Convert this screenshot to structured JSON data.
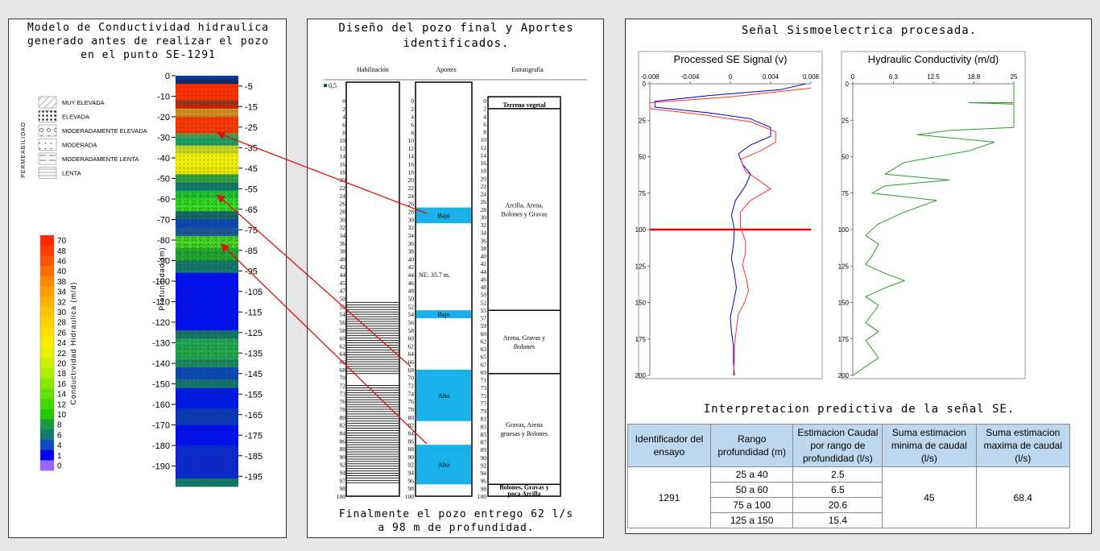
{
  "left_panel": {
    "title_lines": [
      "Modelo de Conductividad hidraulica",
      "generado antes de realizar el pozo",
      "en el punto SE-1291"
    ],
    "permeability_axis_label": "Permeabilidad",
    "permeability_legend": [
      "MUY ELEVADA",
      "ELEVADA",
      "MODERADAMENTE ELEVADA",
      "MODERADA",
      "MODERADAMENTE LENTA",
      "LENTA"
    ],
    "color_scale_label": "Conductividad Hidraulica (m/d)",
    "color_scale_values": [
      "70",
      "48",
      "46",
      "40",
      "38",
      "34",
      "32",
      "30",
      "28",
      "26",
      "24",
      "22",
      "20",
      "18",
      "16",
      "14",
      "12",
      "10",
      "8",
      "6",
      "4",
      "1",
      "0"
    ],
    "color_scale_colors": [
      "#ff2a00",
      "#ff3c00",
      "#ff5500",
      "#ff6f00",
      "#ff8a00",
      "#ffa000",
      "#ffb300",
      "#ffc400",
      "#ffd200",
      "#ffe000",
      "#f8ec00",
      "#e8f000",
      "#ccf000",
      "#aaee00",
      "#88e800",
      "#66e000",
      "#44d800",
      "#22c800",
      "#1a9a40",
      "#127a6a",
      "#0a4aba",
      "#0000ee",
      "#9966ff"
    ],
    "depth_axis_label": "Profundidad (m)",
    "depth_left_ticks": [
      "0",
      "-10",
      "-20",
      "-30",
      "-40",
      "-50",
      "-60",
      "-70",
      "-80",
      "-90",
      "-100",
      "-110",
      "-120",
      "-130",
      "-140",
      "-150",
      "-160",
      "-170",
      "-180",
      "-190"
    ],
    "depth_right_ticks": [
      "-5",
      "-15",
      "-25",
      "-35",
      "-45",
      "-55",
      "-65",
      "-75",
      "-85",
      "-95",
      "-105",
      "-115",
      "-125",
      "-135",
      "-145",
      "-155",
      "-165",
      "-175",
      "-185",
      "-195"
    ]
  },
  "middle_panel": {
    "title_lines": [
      "Diseño del pozo final y Aportes",
      "identificados."
    ],
    "column_headers": [
      "Habilitación",
      "Aportes",
      "Estratigrafía"
    ],
    "top_marker": "0,5",
    "depth_ticks_a": [
      "0",
      "2",
      "4",
      "6",
      "8",
      "10",
      "12",
      "14",
      "16",
      "18",
      "20",
      "22",
      "24",
      "26",
      "28",
      "30",
      "32",
      "34",
      "36",
      "38",
      "40",
      "42",
      "44",
      "45",
      "47",
      "50",
      "52",
      "54",
      "56",
      "58",
      "60",
      "62",
      "64",
      "66",
      "68",
      "70",
      "72",
      "73",
      "76",
      "78",
      "80",
      "82",
      "84",
      "86",
      "88",
      "90",
      "92",
      "94",
      "97",
      "98",
      "100"
    ],
    "depth_ticks_b": [
      "0",
      "2",
      "4",
      "6",
      "8",
      "10",
      "12",
      "14",
      "16",
      "18",
      "20",
      "22",
      "24",
      "26",
      "28",
      "30",
      "32",
      "34",
      "36",
      "38",
      "40",
      "42",
      "44",
      "46",
      "48",
      "50",
      "52",
      "54",
      "56",
      "58",
      "60",
      "62",
      "64",
      "66",
      "68",
      "70",
      "72",
      "74",
      "76",
      "78",
      "80",
      "82",
      "84",
      "86",
      "88",
      "90",
      "92",
      "94",
      "96",
      "98",
      "100"
    ],
    "depth_ticks_c": [
      "0",
      "2",
      "4",
      "6",
      "8",
      "10",
      "12",
      "14",
      "16",
      "18",
      "20",
      "22",
      "24",
      "26",
      "28",
      "30",
      "32",
      "34",
      "36",
      "38",
      "40",
      "42",
      "44",
      "46",
      "48",
      "50",
      "52",
      "55",
      "57",
      "59",
      "60",
      "62",
      "63",
      "65",
      "67",
      "69",
      "71",
      "73",
      "75",
      "77",
      "79",
      "81",
      "83",
      "85",
      "87",
      "89",
      "90",
      "92",
      "94",
      "96",
      "98",
      "100"
    ],
    "aportes": [
      {
        "label": "Bajo",
        "from": 27,
        "to": 31
      },
      {
        "label": "Bajo",
        "from": 53,
        "to": 55
      },
      {
        "label": "Alto",
        "from": 68,
        "to": 81
      },
      {
        "label": "Alto",
        "from": 87,
        "to": 97
      }
    ],
    "ne_label": "NE: 35.7 m.",
    "ne_depth": 44,
    "screens": [
      {
        "from": 51,
        "to": 69
      },
      {
        "from": 72,
        "to": 97
      }
    ],
    "strata": [
      {
        "label": "Terreno vegetal",
        "from": 0,
        "to": 2
      },
      {
        "label": "Arcilla, Arena, Bolones y Gravas",
        "from": 2,
        "to": 53
      },
      {
        "label": "Arena, Gravas y Bolones",
        "from": 53,
        "to": 69
      },
      {
        "label": "Gravas, Arena gruesas y Bolones",
        "from": 69,
        "to": 97
      },
      {
        "label": "Bolones, Gravas y poca Arcilla",
        "from": 97,
        "to": 100
      }
    ],
    "footer_lines": [
      "Finalmente el pozo entrego 62 l/s",
      "a 98 m de profundidad."
    ]
  },
  "right_panel": {
    "title": "Señal Sismoelectrica procesada.",
    "chart_data": [
      {
        "type": "line",
        "title": "Processed SE Signal (v)",
        "xlim": [
          -0.008,
          0.008
        ],
        "x_ticks": [
          "-0.008",
          "-0.004",
          "0",
          "0.004",
          "0.008"
        ],
        "ylim": [
          0,
          200
        ],
        "y_ticks": [
          "0",
          "25",
          "50",
          "75",
          "100",
          "125",
          "150",
          "175",
          "200"
        ],
        "series": [
          {
            "color": "#0000cc",
            "points": [
              [
                0.0075,
                0
              ],
              [
                0.005,
                4
              ],
              [
                -0.002,
                8
              ],
              [
                -0.0075,
                12
              ],
              [
                -0.0075,
                16
              ],
              [
                -0.002,
                20
              ],
              [
                0.002,
                24
              ],
              [
                0.004,
                30
              ],
              [
                0.004,
                36
              ],
              [
                0.002,
                42
              ],
              [
                0.0008,
                48
              ],
              [
                0.0012,
                55
              ],
              [
                0.002,
                62
              ],
              [
                0.0015,
                70
              ],
              [
                0.0005,
                80
              ],
              [
                0.0001,
                90
              ],
              [
                0.0004,
                100
              ],
              [
                0.0003,
                110
              ],
              [
                0.0001,
                120
              ],
              [
                0.0004,
                130
              ],
              [
                0.0006,
                140
              ],
              [
                0.0003,
                150
              ],
              [
                0,
                160
              ],
              [
                0.0001,
                170
              ],
              [
                0.0003,
                180
              ],
              [
                0.0003,
                190
              ],
              [
                0.0004,
                200
              ]
            ]
          },
          {
            "color": "#ff3030",
            "points": [
              [
                0.008,
                3
              ],
              [
                0,
                9
              ],
              [
                -0.008,
                13
              ],
              [
                -0.008,
                17
              ],
              [
                -0.003,
                21
              ],
              [
                0.002,
                26
              ],
              [
                0.0045,
                33
              ],
              [
                0.0045,
                40
              ],
              [
                0.003,
                46
              ],
              [
                0.001,
                52
              ],
              [
                0.0015,
                60
              ],
              [
                0.003,
                67
              ],
              [
                0.004,
                72
              ],
              [
                0.002,
                80
              ],
              [
                0.001,
                88
              ],
              [
                0.001,
                98
              ],
              [
                0.0015,
                108
              ],
              [
                0.0015,
                116
              ],
              [
                0.0012,
                124
              ],
              [
                0.0016,
                134
              ],
              [
                0.0018,
                142
              ],
              [
                0.0014,
                150
              ],
              [
                0.0008,
                158
              ],
              [
                0.0006,
                168
              ],
              [
                0.0004,
                180
              ],
              [
                0.0004,
                190
              ],
              [
                0.0003,
                200
              ]
            ]
          }
        ],
        "marker_depth": 100
      },
      {
        "type": "line",
        "title": "Hydraulic Conductivity (m/d)",
        "xlim": [
          0,
          25
        ],
        "x_ticks": [
          "0",
          "6.3",
          "12.5",
          "18.8",
          "25"
        ],
        "ylim": [
          0,
          200
        ],
        "y_ticks": [
          "0",
          "25",
          "50",
          "75",
          "100",
          "125",
          "150",
          "175",
          "200"
        ],
        "series": [
          {
            "color": "#2f9a2f",
            "points": [
              [
                25,
                0
              ],
              [
                25,
                13
              ],
              [
                18,
                13
              ],
              [
                25,
                14
              ],
              [
                25,
                30
              ],
              [
                15,
                32
              ],
              [
                10,
                35
              ],
              [
                22,
                40
              ],
              [
                18,
                46
              ],
              [
                8,
                54
              ],
              [
                5,
                62
              ],
              [
                15,
                66
              ],
              [
                5,
                70
              ],
              [
                3,
                75
              ],
              [
                13,
                80
              ],
              [
                8,
                88
              ],
              [
                4,
                96
              ],
              [
                2,
                104
              ],
              [
                4,
                110
              ],
              [
                3,
                118
              ],
              [
                2,
                124
              ],
              [
                5,
                130
              ],
              [
                8,
                135
              ],
              [
                5,
                140
              ],
              [
                2,
                146
              ],
              [
                4,
                152
              ],
              [
                3,
                158
              ],
              [
                2,
                164
              ],
              [
                4,
                170
              ],
              [
                2,
                176
              ],
              [
                3,
                182
              ],
              [
                4,
                188
              ],
              [
                2,
                194
              ],
              [
                0,
                200
              ]
            ]
          }
        ]
      }
    ]
  },
  "table": {
    "title": "Interpretacion predictiva de la señal SE.",
    "headers": [
      "Identificador del ensayo",
      "Rango profundidad (m)",
      "Estimacion Caudal por rango de profundidad (l/s)",
      "Suma estimacion minima de caudal (l/s)",
      "Suma estimacion maxima de caudal (l/s)"
    ],
    "identifier": "1291",
    "rows": [
      {
        "range": "25 a 40",
        "flow": "2.5"
      },
      {
        "range": "50 a 60",
        "flow": "6.5"
      },
      {
        "range": "75 a 100",
        "flow": "20.6"
      },
      {
        "range": "125 a 150",
        "flow": "15.4"
      }
    ],
    "min_sum": "45",
    "max_sum": "68.4"
  }
}
